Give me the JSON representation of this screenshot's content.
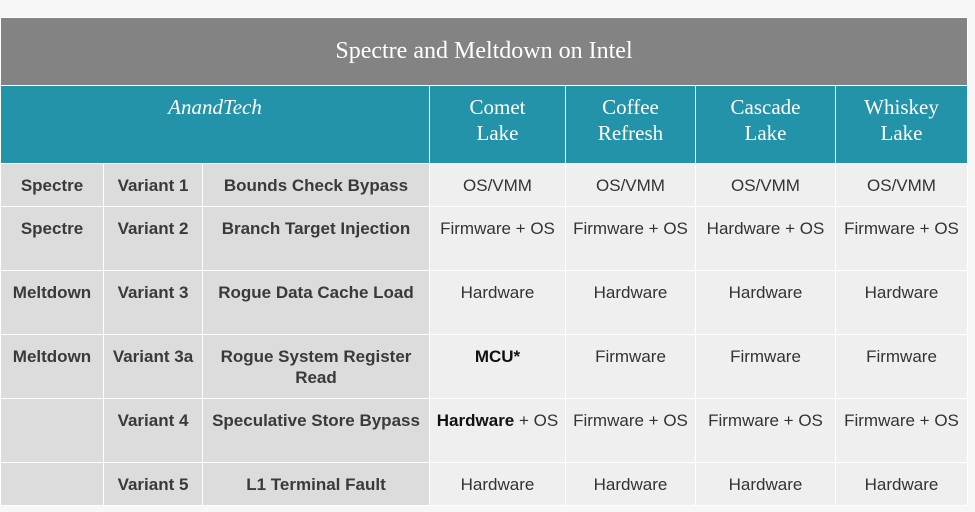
{
  "title": "Spectre and Meltdown on Intel",
  "header": {
    "brand": "AnandTech",
    "columns": [
      {
        "line1": "Comet",
        "line2": "Lake"
      },
      {
        "line1": "Coffee",
        "line2": "Refresh"
      },
      {
        "line1": "Cascade",
        "line2": "Lake"
      },
      {
        "line1": "Whiskey",
        "line2": "Lake"
      }
    ]
  },
  "rows": [
    {
      "type": "Spectre",
      "variant": "Variant 1",
      "name": "Bounds Check Bypass",
      "cells": [
        {
          "strong": "",
          "text": "OS/VMM"
        },
        {
          "strong": "",
          "text": "OS/VMM"
        },
        {
          "strong": "",
          "text": "OS/VMM"
        },
        {
          "strong": "",
          "text": "OS/VMM"
        }
      ]
    },
    {
      "type": "Spectre",
      "variant": "Variant 2",
      "name": "Branch Target Injection",
      "cells": [
        {
          "strong": "",
          "text": "Firmware + OS"
        },
        {
          "strong": "",
          "text": "Firmware + OS"
        },
        {
          "strong": "",
          "text": "Hardware + OS"
        },
        {
          "strong": "",
          "text": "Firmware + OS"
        }
      ]
    },
    {
      "type": "Meltdown",
      "variant": "Variant 3",
      "name": "Rogue Data Cache Load",
      "cells": [
        {
          "strong": "",
          "text": "Hardware"
        },
        {
          "strong": "",
          "text": "Hardware"
        },
        {
          "strong": "",
          "text": "Hardware"
        },
        {
          "strong": "",
          "text": "Hardware"
        }
      ]
    },
    {
      "type": "Meltdown",
      "variant": "Variant 3a",
      "name": "Rogue System Register Read",
      "cells": [
        {
          "strong": "MCU*",
          "text": ""
        },
        {
          "strong": "",
          "text": "Firmware"
        },
        {
          "strong": "",
          "text": "Firmware"
        },
        {
          "strong": "",
          "text": "Firmware"
        }
      ]
    },
    {
      "type": "",
      "variant": "Variant 4",
      "name": "Speculative Store Bypass",
      "cells": [
        {
          "strong": "Hardware",
          "text": " + OS"
        },
        {
          "strong": "",
          "text": "Firmware + OS"
        },
        {
          "strong": "",
          "text": "Firmware + OS"
        },
        {
          "strong": "",
          "text": "Firmware + OS"
        }
      ]
    },
    {
      "type": "",
      "variant": "Variant 5",
      "name": "L1 Terminal Fault",
      "cells": [
        {
          "strong": "",
          "text": "Hardware"
        },
        {
          "strong": "",
          "text": "Hardware"
        },
        {
          "strong": "",
          "text": "Hardware"
        },
        {
          "strong": "",
          "text": "Hardware"
        }
      ]
    }
  ]
}
